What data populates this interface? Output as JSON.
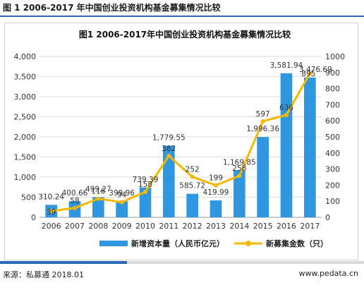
{
  "header": {
    "title": "图 1 2006-2017 年中国创业投资机构基金募集情况比较"
  },
  "footer": {
    "source": "来源：私募通 2018.01",
    "site": "www.pedata.cn"
  },
  "chart_data": {
    "type": "bar",
    "title": "图1 2006-2017年中国创业投资机构基金募集情况比较",
    "categories": [
      "2006",
      "2007",
      "2008",
      "2009",
      "2010",
      "2011",
      "2012",
      "2013",
      "2014",
      "2015",
      "2016",
      "2017"
    ],
    "y_left": {
      "min": 0,
      "max": 4000,
      "ticks": [
        "0",
        "500",
        "1,000",
        "1,500",
        "2,000",
        "2,500",
        "3,000",
        "3,500",
        "4,000"
      ]
    },
    "y_right": {
      "min": 0,
      "max": 1000,
      "ticks": [
        "0",
        "100",
        "200",
        "300",
        "400",
        "500",
        "600",
        "700",
        "800",
        "900",
        "1000"
      ]
    },
    "grid": true,
    "legend_position": "bottom",
    "series": [
      {
        "name": "新增资本量（人民币亿元）",
        "type": "bar",
        "axis": "left",
        "color": "#2f96e0",
        "values": [
          310.24,
          400.66,
          499.27,
          399.96,
          739.39,
          1779.55,
          585.72,
          419.99,
          1169.85,
          1996.36,
          3581.94,
          3476.69
        ],
        "labels": [
          "310.24",
          "400.66",
          "499.27",
          "399.96",
          "739.39",
          "1,779.55",
          "585.72",
          "419.99",
          "1,169.85",
          "1,996.36",
          "3,581.94",
          "3,476.69"
        ]
      },
      {
        "name": "新募集金数（只）",
        "type": "line",
        "axis": "right",
        "color": "#f5b800",
        "values": [
          39,
          58,
          116,
          94,
          158,
          382,
          252,
          199,
          258,
          597,
          636,
          895
        ],
        "labels": [
          "39",
          "58",
          "116",
          "94",
          "158",
          "382",
          "252",
          "199",
          "258",
          "597",
          "636",
          "895"
        ]
      }
    ]
  }
}
